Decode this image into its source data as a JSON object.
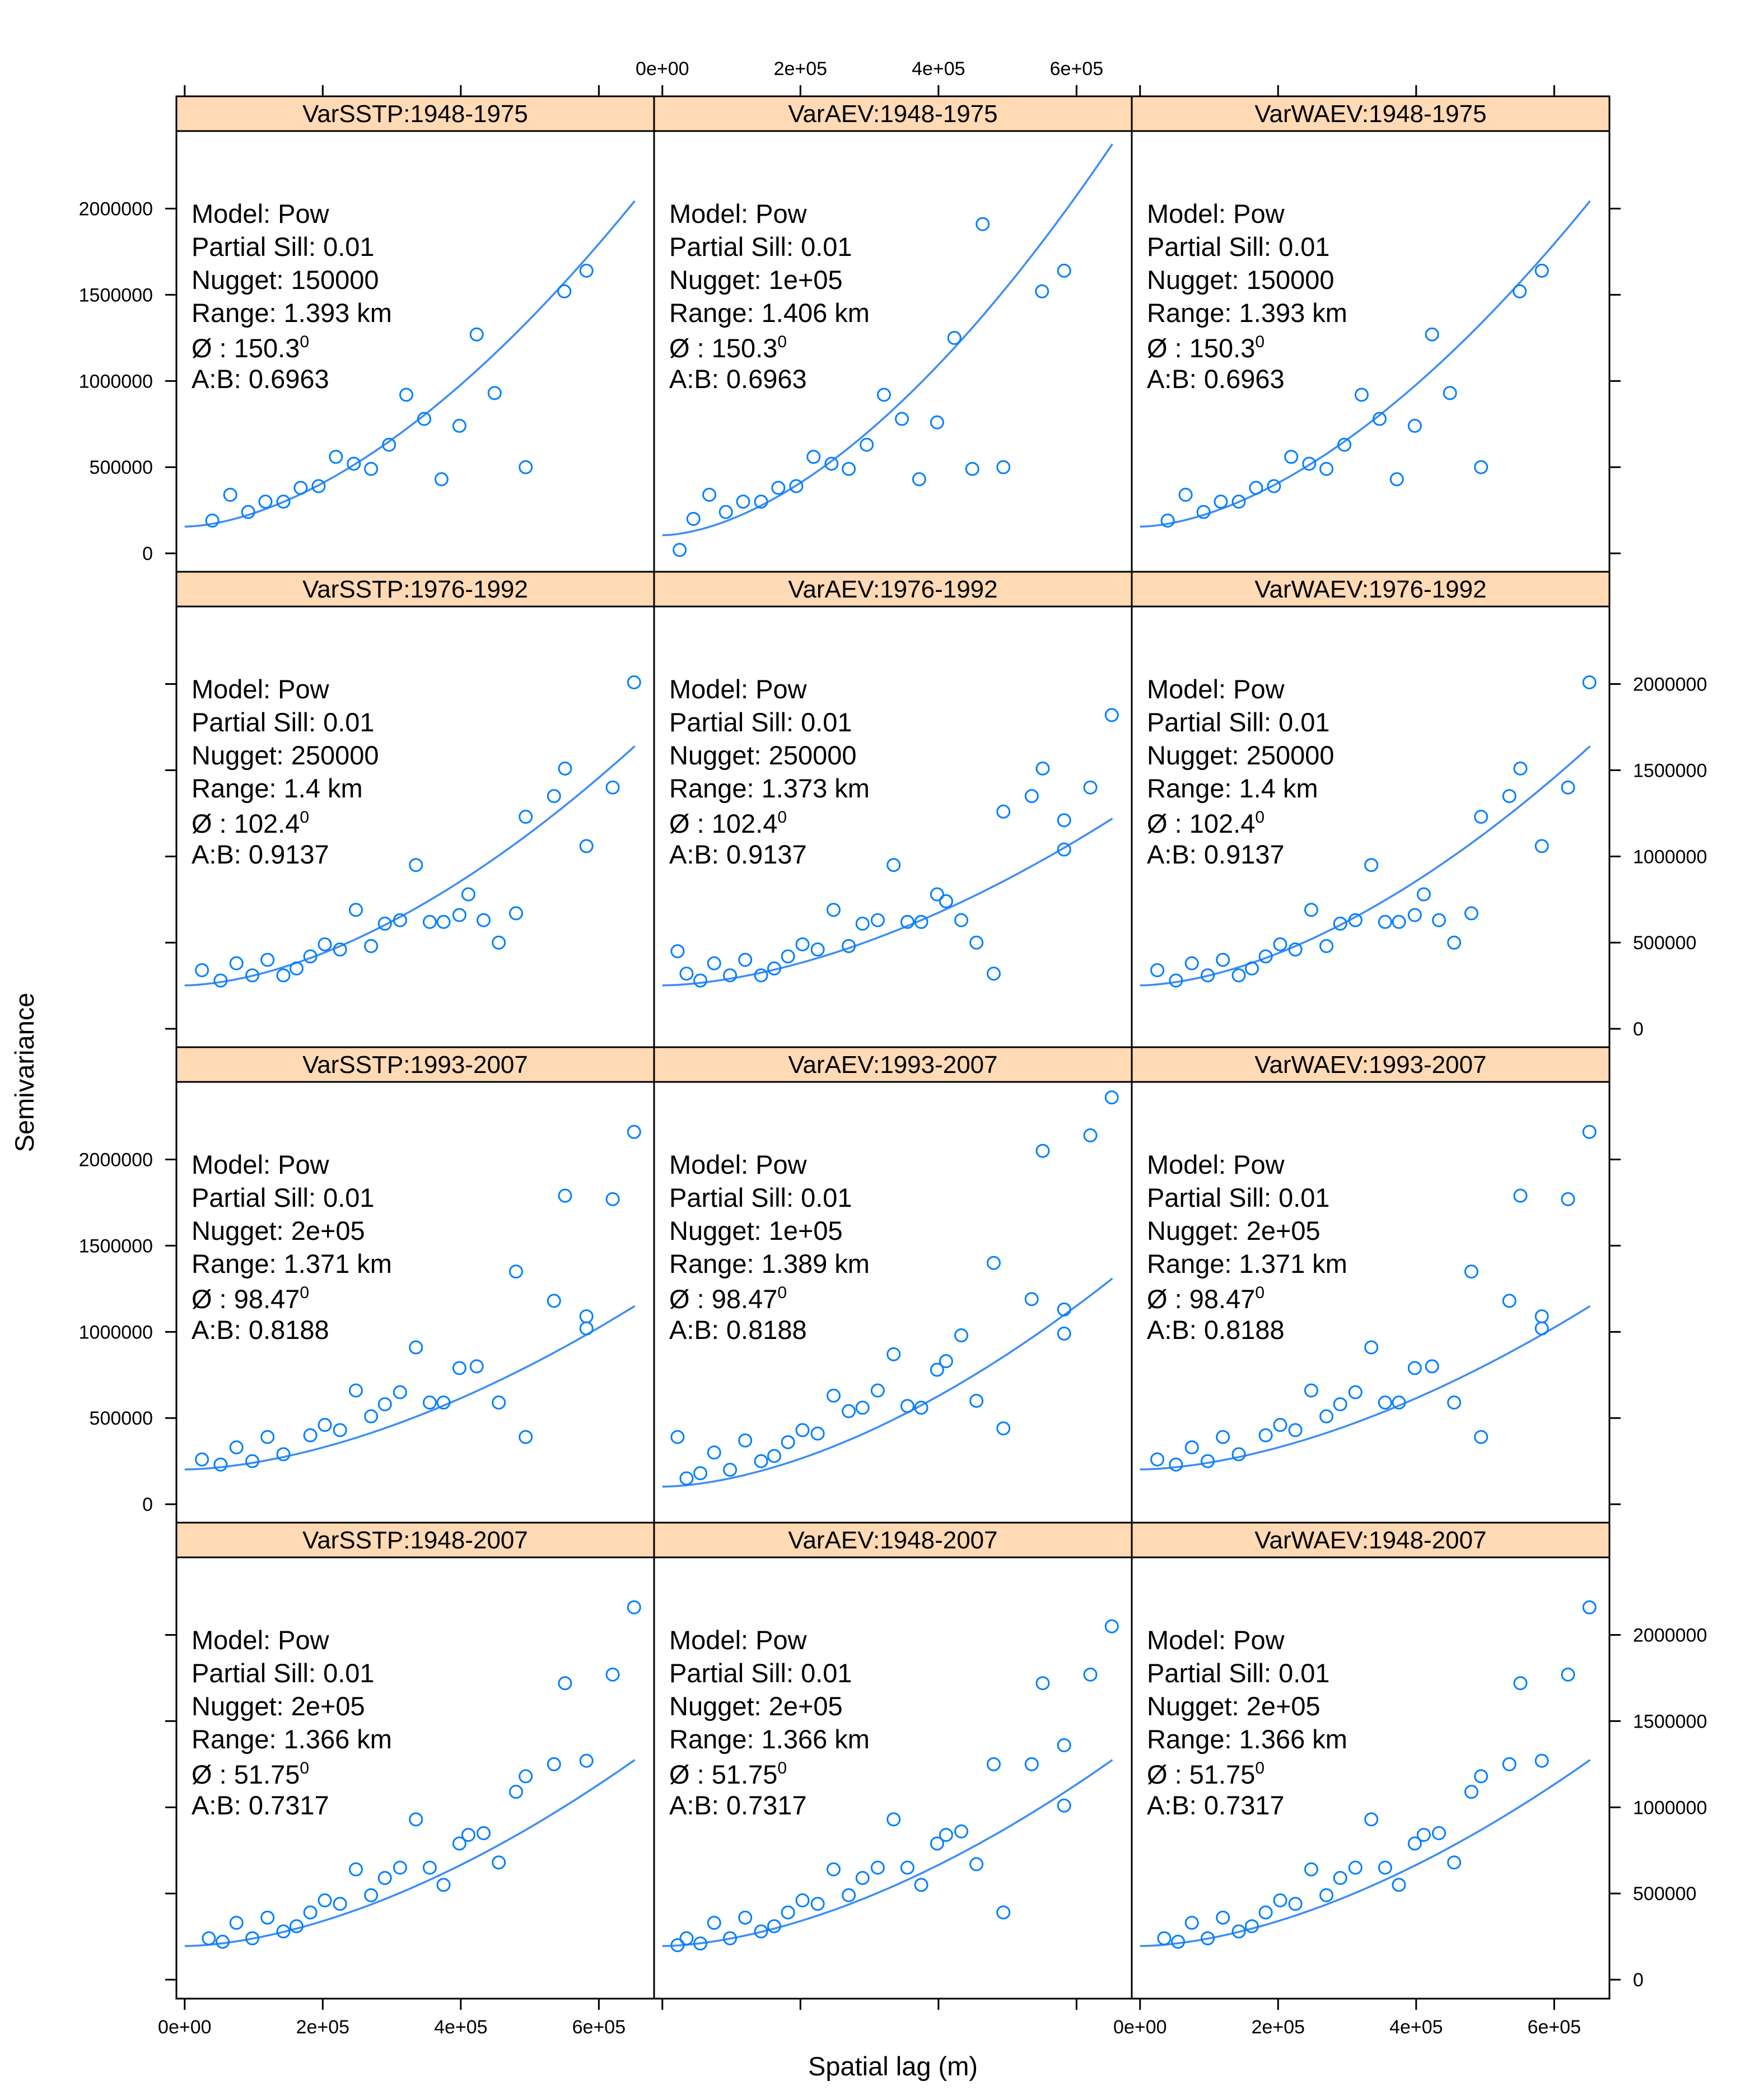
{
  "figure": {
    "xlabel": "Spatial lag (m)",
    "ylabel": "Semivariance",
    "x_ticks": [
      0,
      200000,
      400000,
      600000
    ],
    "x_tick_labels": [
      "0e+00",
      "2e+05",
      "4e+05",
      "6e+05"
    ],
    "y_ticks": [
      0,
      500000,
      1000000,
      1500000,
      2000000
    ],
    "y_tick_labels": [
      "0",
      "500000",
      "1000000",
      "1500000",
      "2000000"
    ],
    "xlim": [
      -12000,
      680000
    ],
    "ylim": [
      -110000,
      2450000
    ],
    "colors": {
      "strip": "#ffdab4",
      "points": "#0080ff",
      "line": "#3d8df5",
      "frame": "#000000"
    }
  },
  "chart_data": {
    "type": "scatter",
    "layout": {
      "columns": 3,
      "rows": 4
    },
    "model_labels": [
      "Model: ",
      "Partial Sill: ",
      "Nugget: ",
      "Range: ",
      "Ø : ",
      "A:B: "
    ],
    "panels": [
      {
        "title": "VarSSTP:1948-1975",
        "model": "Pow",
        "partial_sill": "0.01",
        "nugget": "150000",
        "range": "1.393 km",
        "angle": "150.3",
        "angle_sup": "0",
        "ab": "0.6963",
        "x": [
          40000,
          66000,
          92000,
          117000,
          143000,
          168000,
          194000,
          219000,
          245000,
          270000,
          296000,
          321000,
          347000,
          372000,
          398000,
          423000,
          449000,
          494000,
          550000,
          582000
        ],
        "y": [
          190000,
          340000,
          240000,
          300000,
          300000,
          380000,
          390000,
          560000,
          520000,
          490000,
          630000,
          920000,
          780000,
          430000,
          740000,
          1270000,
          930000,
          500000,
          1520000,
          1640000
        ],
        "fit": {
          "x0": 0,
          "x1": 652000,
          "y0": 155000,
          "y1": 2045000
        }
      },
      {
        "title": "VarAEV:1948-1975",
        "model": "Pow",
        "partial_sill": "0.01",
        "nugget": "1e+05",
        "range": "1.406 km",
        "angle": "150.3",
        "angle_sup": "0",
        "ab": "0.6963",
        "x": [
          25000,
          45000,
          68000,
          92000,
          117000,
          143000,
          168000,
          194000,
          219000,
          245000,
          270000,
          296000,
          321000,
          347000,
          372000,
          398000,
          423000,
          449000,
          464000,
          494000,
          550000,
          582000
        ],
        "y": [
          20000,
          200000,
          340000,
          240000,
          300000,
          300000,
          380000,
          390000,
          560000,
          520000,
          490000,
          630000,
          920000,
          780000,
          430000,
          760000,
          1250000,
          490000,
          1910000,
          500000,
          1520000,
          1640000
        ],
        "fit": {
          "x0": 0,
          "x1": 652000,
          "y0": 105000,
          "y1": 2375000
        }
      },
      {
        "title": "VarWAEV:1948-1975",
        "model": "Pow",
        "partial_sill": "0.01",
        "nugget": "150000",
        "range": "1.393 km",
        "angle": "150.3",
        "angle_sup": "0",
        "ab": "0.6963",
        "x": [
          40000,
          66000,
          92000,
          117000,
          143000,
          168000,
          194000,
          219000,
          245000,
          270000,
          296000,
          321000,
          347000,
          372000,
          398000,
          423000,
          449000,
          494000,
          550000,
          582000
        ],
        "y": [
          190000,
          340000,
          240000,
          300000,
          300000,
          380000,
          390000,
          560000,
          520000,
          490000,
          630000,
          920000,
          780000,
          430000,
          740000,
          1270000,
          930000,
          500000,
          1520000,
          1640000
        ],
        "fit": {
          "x0": 0,
          "x1": 652000,
          "y0": 155000,
          "y1": 2045000
        }
      },
      {
        "title": "VarSSTP:1976-1992",
        "model": "Pow",
        "partial_sill": "0.01",
        "nugget": "250000",
        "range": "1.4 km",
        "angle": "102.4",
        "angle_sup": "0",
        "ab": "0.9137",
        "x": [
          25000,
          52000,
          75000,
          98000,
          120000,
          143000,
          162000,
          182000,
          203000,
          225000,
          248000,
          270000,
          290000,
          312000,
          335000,
          355000,
          375000,
          398000,
          411000,
          433000,
          455000,
          480000,
          494000,
          535000,
          551000,
          582000,
          620000,
          651000
        ],
        "y": [
          340000,
          280000,
          380000,
          310000,
          400000,
          310000,
          350000,
          420000,
          490000,
          460000,
          690000,
          480000,
          610000,
          630000,
          950000,
          620000,
          620000,
          660000,
          780000,
          630000,
          500000,
          670000,
          1230000,
          1350000,
          1510000,
          1060000,
          1400000,
          2010000
        ],
        "fit": {
          "x0": 0,
          "x1": 652000,
          "y0": 252000,
          "y1": 1640000
        }
      },
      {
        "title": "VarAEV:1976-1992",
        "model": "Pow",
        "partial_sill": "0.01",
        "nugget": "250000",
        "range": "1.373 km",
        "angle": "102.4",
        "angle_sup": "0",
        "ab": "0.9137",
        "x": [
          22000,
          35000,
          55000,
          75000,
          98000,
          120000,
          143000,
          162000,
          182000,
          203000,
          225000,
          248000,
          270000,
          290000,
          312000,
          335000,
          355000,
          375000,
          398000,
          411000,
          433000,
          455000,
          480000,
          494000,
          535000,
          551000,
          582000,
          620000,
          582000,
          651000
        ],
        "y": [
          450000,
          320000,
          280000,
          380000,
          310000,
          400000,
          310000,
          350000,
          420000,
          490000,
          460000,
          690000,
          480000,
          610000,
          630000,
          950000,
          620000,
          620000,
          780000,
          740000,
          630000,
          500000,
          320000,
          1260000,
          1350000,
          1510000,
          1210000,
          1400000,
          1040000,
          1820000
        ],
        "fit": {
          "x0": 0,
          "x1": 652000,
          "y0": 252000,
          "y1": 1220000
        }
      },
      {
        "title": "VarWAEV:1976-1992",
        "model": "Pow",
        "partial_sill": "0.01",
        "nugget": "250000",
        "range": "1.4 km",
        "angle": "102.4",
        "angle_sup": "0",
        "ab": "0.9137",
        "x": [
          25000,
          52000,
          75000,
          98000,
          120000,
          143000,
          162000,
          182000,
          203000,
          225000,
          248000,
          270000,
          290000,
          312000,
          335000,
          355000,
          375000,
          398000,
          411000,
          433000,
          455000,
          480000,
          494000,
          535000,
          551000,
          582000,
          620000,
          651000
        ],
        "y": [
          340000,
          280000,
          380000,
          310000,
          400000,
          310000,
          350000,
          420000,
          490000,
          460000,
          690000,
          480000,
          610000,
          630000,
          950000,
          620000,
          620000,
          660000,
          780000,
          630000,
          500000,
          670000,
          1230000,
          1350000,
          1510000,
          1060000,
          1400000,
          2010000
        ],
        "fit": {
          "x0": 0,
          "x1": 652000,
          "y0": 252000,
          "y1": 1640000
        }
      },
      {
        "title": "VarSSTP:1993-2007",
        "model": "Pow",
        "partial_sill": "0.01",
        "nugget": "2e+05",
        "range": "1.371 km",
        "angle": "98.47",
        "angle_sup": "0",
        "ab": "0.8188",
        "x": [
          25000,
          52000,
          75000,
          98000,
          120000,
          143000,
          182000,
          203000,
          225000,
          248000,
          270000,
          290000,
          312000,
          335000,
          355000,
          375000,
          398000,
          423000,
          455000,
          480000,
          494000,
          535000,
          551000,
          582000,
          582000,
          620000,
          651000
        ],
        "y": [
          260000,
          230000,
          330000,
          250000,
          390000,
          290000,
          400000,
          460000,
          430000,
          660000,
          510000,
          580000,
          650000,
          910000,
          590000,
          590000,
          790000,
          800000,
          590000,
          1350000,
          390000,
          1180000,
          1790000,
          1090000,
          1020000,
          1770000,
          2160000
        ],
        "fit": {
          "x0": 0,
          "x1": 652000,
          "y0": 202000,
          "y1": 1150000
        }
      },
      {
        "title": "VarAEV:1993-2007",
        "model": "Pow",
        "partial_sill": "0.01",
        "nugget": "1e+05",
        "range": "1.389 km",
        "angle": "98.47",
        "angle_sup": "0",
        "ab": "0.8188",
        "x": [
          22000,
          35000,
          55000,
          75000,
          98000,
          120000,
          143000,
          162000,
          182000,
          203000,
          225000,
          248000,
          270000,
          290000,
          312000,
          335000,
          355000,
          375000,
          398000,
          411000,
          433000,
          455000,
          480000,
          494000,
          535000,
          551000,
          582000,
          620000,
          582000,
          651000
        ],
        "y": [
          390000,
          150000,
          180000,
          300000,
          200000,
          370000,
          250000,
          280000,
          360000,
          430000,
          410000,
          630000,
          540000,
          560000,
          660000,
          870000,
          570000,
          560000,
          780000,
          830000,
          980000,
          600000,
          1400000,
          440000,
          1190000,
          2050000,
          1130000,
          2140000,
          990000,
          2360000
        ],
        "fit": {
          "x0": 0,
          "x1": 652000,
          "y0": 102000,
          "y1": 1310000
        }
      },
      {
        "title": "VarWAEV:1993-2007",
        "model": "Pow",
        "partial_sill": "0.01",
        "nugget": "2e+05",
        "range": "1.371 km",
        "angle": "98.47",
        "angle_sup": "0",
        "ab": "0.8188",
        "x": [
          25000,
          52000,
          75000,
          98000,
          120000,
          143000,
          182000,
          203000,
          225000,
          248000,
          270000,
          290000,
          312000,
          335000,
          355000,
          375000,
          398000,
          423000,
          455000,
          480000,
          494000,
          535000,
          551000,
          582000,
          582000,
          620000,
          651000
        ],
        "y": [
          260000,
          230000,
          330000,
          250000,
          390000,
          290000,
          400000,
          460000,
          430000,
          660000,
          510000,
          580000,
          650000,
          910000,
          590000,
          590000,
          790000,
          800000,
          590000,
          1350000,
          390000,
          1180000,
          1790000,
          1090000,
          1020000,
          1770000,
          2160000
        ],
        "fit": {
          "x0": 0,
          "x1": 652000,
          "y0": 202000,
          "y1": 1150000
        }
      },
      {
        "title": "VarSSTP:1948-2007",
        "model": "Pow",
        "partial_sill": "0.01",
        "nugget": "2e+05",
        "range": "1.366 km",
        "angle": "51.75",
        "angle_sup": "0",
        "ab": "0.7317",
        "x": [
          35000,
          55000,
          75000,
          98000,
          120000,
          143000,
          162000,
          182000,
          203000,
          225000,
          248000,
          270000,
          290000,
          312000,
          335000,
          355000,
          375000,
          398000,
          411000,
          433000,
          455000,
          480000,
          494000,
          535000,
          551000,
          582000,
          620000,
          651000
        ],
        "y": [
          240000,
          220000,
          330000,
          240000,
          360000,
          280000,
          310000,
          390000,
          460000,
          440000,
          640000,
          490000,
          590000,
          650000,
          930000,
          650000,
          550000,
          790000,
          840000,
          850000,
          680000,
          1090000,
          1180000,
          1250000,
          1720000,
          1270000,
          1770000,
          2160000
        ],
        "fit": {
          "x0": 0,
          "x1": 652000,
          "y0": 195000,
          "y1": 1275000
        }
      },
      {
        "title": "VarAEV:1948-2007",
        "model": "Pow",
        "partial_sill": "0.01",
        "nugget": "2e+05",
        "range": "1.366 km",
        "angle": "51.75",
        "angle_sup": "0",
        "ab": "0.7317",
        "x": [
          22000,
          35000,
          55000,
          75000,
          98000,
          120000,
          143000,
          162000,
          182000,
          203000,
          225000,
          248000,
          270000,
          290000,
          312000,
          335000,
          355000,
          375000,
          398000,
          411000,
          433000,
          455000,
          480000,
          494000,
          535000,
          551000,
          582000,
          620000,
          582000,
          651000
        ],
        "y": [
          200000,
          240000,
          210000,
          330000,
          240000,
          360000,
          280000,
          310000,
          390000,
          460000,
          440000,
          640000,
          490000,
          590000,
          650000,
          930000,
          650000,
          550000,
          790000,
          840000,
          860000,
          670000,
          1250000,
          390000,
          1250000,
          1720000,
          1360000,
          1770000,
          1010000,
          2050000
        ],
        "fit": {
          "x0": 0,
          "x1": 652000,
          "y0": 195000,
          "y1": 1275000
        }
      },
      {
        "title": "VarWAEV:1948-2007",
        "model": "Pow",
        "partial_sill": "0.01",
        "nugget": "2e+05",
        "range": "1.366 km",
        "angle": "51.75",
        "angle_sup": "0",
        "ab": "0.7317",
        "x": [
          35000,
          55000,
          75000,
          98000,
          120000,
          143000,
          162000,
          182000,
          203000,
          225000,
          248000,
          270000,
          290000,
          312000,
          335000,
          355000,
          375000,
          398000,
          411000,
          433000,
          455000,
          480000,
          494000,
          535000,
          551000,
          582000,
          620000,
          651000
        ],
        "y": [
          240000,
          220000,
          330000,
          240000,
          360000,
          280000,
          310000,
          390000,
          460000,
          440000,
          640000,
          490000,
          590000,
          650000,
          930000,
          650000,
          550000,
          790000,
          840000,
          850000,
          680000,
          1090000,
          1180000,
          1250000,
          1720000,
          1270000,
          1770000,
          2160000
        ],
        "fit": {
          "x0": 0,
          "x1": 652000,
          "y0": 195000,
          "y1": 1275000
        }
      }
    ]
  }
}
